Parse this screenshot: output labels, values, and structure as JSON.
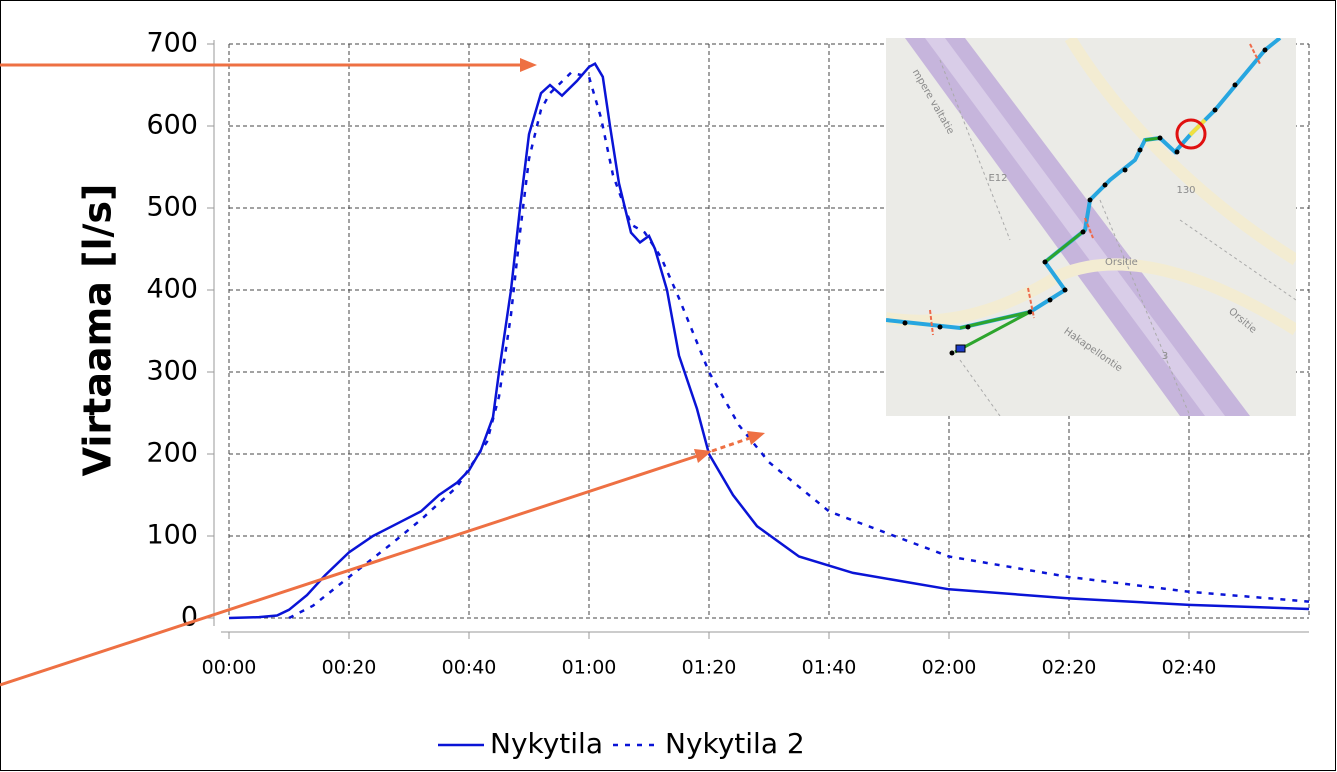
{
  "chart_data": {
    "type": "line",
    "y_label": "Virtaama [l/s]",
    "xlim": [
      0,
      180
    ],
    "ylim": [
      0,
      700
    ],
    "xticks": [
      {
        "value": 0,
        "label": "00:00"
      },
      {
        "value": 20,
        "label": "00:20"
      },
      {
        "value": 40,
        "label": "00:40"
      },
      {
        "value": 60,
        "label": "01:00"
      },
      {
        "value": 80,
        "label": "01:20"
      },
      {
        "value": 100,
        "label": "01:40"
      },
      {
        "value": 120,
        "label": "02:00"
      },
      {
        "value": 140,
        "label": "02:20"
      },
      {
        "value": 160,
        "label": "02:40"
      }
    ],
    "yticks": [
      0,
      100,
      200,
      300,
      400,
      500,
      600,
      700
    ],
    "grid": true,
    "legend": "bottom",
    "series": [
      {
        "name": "Nykytila",
        "color": "#0a14d6",
        "style": "solid",
        "x": [
          0,
          5,
          8,
          10,
          13,
          16,
          20,
          24,
          28,
          32,
          35,
          38,
          40,
          42,
          44,
          45,
          47,
          48.5,
          50,
          52,
          53.5,
          55.5,
          58,
          60,
          61,
          62.3,
          63.5,
          65,
          67,
          68.5,
          70,
          71,
          73,
          75,
          78,
          80,
          84,
          88,
          95,
          104,
          120,
          140,
          160,
          180
        ],
        "values": [
          0,
          1,
          3,
          10,
          28,
          52,
          80,
          100,
          115,
          130,
          150,
          165,
          180,
          205,
          245,
          300,
          400,
          500,
          590,
          640,
          650,
          637,
          655,
          672,
          676,
          660,
          600,
          530,
          470,
          458,
          466,
          450,
          400,
          320,
          255,
          200,
          150,
          112,
          75,
          55,
          35,
          24,
          16,
          11
        ]
      },
      {
        "name": "Nykytila 2",
        "color": "#0a14d6",
        "style": "dotted",
        "x": [
          10,
          14,
          20,
          27,
          32,
          38,
          43,
          45,
          47,
          48.5,
          50,
          52,
          53.5,
          57,
          60,
          62,
          64,
          67,
          69.3,
          72,
          75,
          80,
          85,
          90,
          100,
          120,
          140,
          160,
          180
        ],
        "values": [
          0,
          15,
          50,
          90,
          120,
          160,
          215,
          270,
          370,
          470,
          560,
          620,
          640,
          665,
          660,
          610,
          540,
          480,
          470,
          440,
          390,
          300,
          235,
          190,
          130,
          75,
          50,
          32,
          20
        ]
      }
    ]
  },
  "map_labels": [
    "mpere valtatie",
    "E12",
    "130",
    "Orsitie",
    "Orsitie",
    "Hakapellontie",
    "3"
  ]
}
